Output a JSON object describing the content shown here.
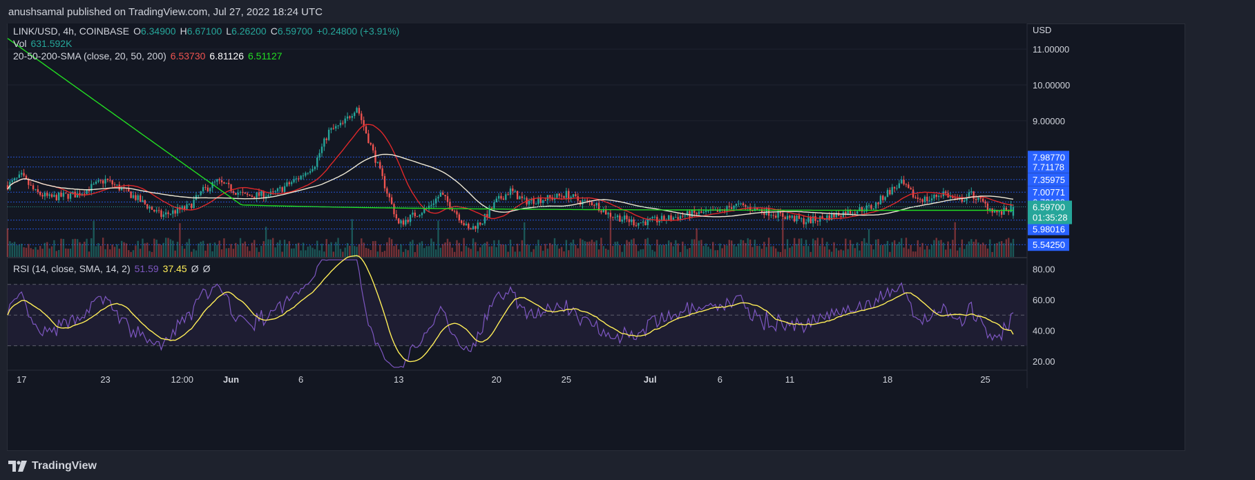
{
  "header": {
    "publisher_line": "anushsamal published on TradingView.com, Jul 27, 2022 18:24 UTC"
  },
  "legend": {
    "symbol": "LINK/USD, 4h, COINBASE",
    "o_label": "O",
    "o_value": "6.34900",
    "h_label": "H",
    "h_value": "6.67100",
    "l_label": "L",
    "l_value": "6.26200",
    "c_label": "C",
    "c_value": "6.59700",
    "change": "+0.24800 (+3.91%)",
    "vol_label": "Vol",
    "vol_value": "631.592K",
    "sma_label": "20-50-200-SMA (close, 20, 50, 200)",
    "sma20_value": "6.53730",
    "sma50_value": "6.81126",
    "sma200_value": "6.51127",
    "rsi_label": "RSI (14, close, SMA, 14, 2)",
    "rsi_value": "51.59",
    "rsi_sma_value": "37.45",
    "rsi_extra1": "Ø",
    "rsi_extra2": "Ø"
  },
  "footer": {
    "brand": "TradingView"
  },
  "icons": {
    "logo": "tradingview-logo-icon"
  },
  "colors": {
    "background": "#131722",
    "up": "#26a69a",
    "down": "#ef5350",
    "sma20": "#e0282a",
    "sma50": "#f0ead6",
    "sma200": "#22dd22",
    "rsi": "#7e57c2",
    "rsi_sma": "#ffee58",
    "price_tag": "#2962ff",
    "current_tag": "#26a69a"
  },
  "chart_data": [
    {
      "type": "candlestick",
      "title": "LINK/USD, 4h, COINBASE",
      "price_axis_label": "USD",
      "y_ticks": [
        "9.00000",
        "10.00000",
        "11.00000"
      ],
      "ylim": [
        5.2,
        11.6
      ],
      "x_ticks": [
        "17",
        "23",
        "12:00",
        "Jun",
        "6",
        "13",
        "20",
        "25",
        "Jul",
        "6",
        "11",
        "18",
        "25"
      ],
      "date_range": [
        "May 16, 2022",
        "Jul 27, 2022"
      ],
      "interval": "4h",
      "horizontal_levels": [
        "7.98770",
        "7.71178",
        "7.35975",
        "7.00771",
        "6.73180",
        "6.22753",
        "5.98016",
        "5.54250"
      ],
      "current_price": {
        "value": "6.59700",
        "countdown": "01:35:28"
      },
      "anchor_closes": [
        [
          "May 16, 2022",
          7.2
        ],
        [
          "May 17, 2022",
          7.45
        ],
        [
          "May 18, 2022",
          7.0
        ],
        [
          "May 19, 2022",
          6.85
        ],
        [
          "May 21, 2022",
          6.95
        ],
        [
          "May 23, 2022",
          7.35
        ],
        [
          "May 25, 2022",
          6.9
        ],
        [
          "May 27, 2022",
          6.35
        ],
        [
          "May 29, 2022",
          6.6
        ],
        [
          "May 30, 2022",
          7.05
        ],
        [
          "May 31, 2022",
          7.3
        ],
        [
          "Jun 02, 2022",
          6.9
        ],
        [
          "Jun 04, 2022",
          6.95
        ],
        [
          "Jun 06, 2022",
          7.45
        ],
        [
          "Jun 07, 2022",
          7.8
        ],
        [
          "Jun 08, 2022",
          8.7
        ],
        [
          "Jun 09, 2022",
          8.9
        ],
        [
          "Jun 10, 2022",
          9.4
        ],
        [
          "Jun 11, 2022",
          8.3
        ],
        [
          "Jun 12, 2022",
          7.2
        ],
        [
          "Jun 13, 2022",
          6.1
        ],
        [
          "Jun 14, 2022",
          6.35
        ],
        [
          "Jun 15, 2022",
          6.55
        ],
        [
          "Jun 16, 2022",
          6.95
        ],
        [
          "Jun 17, 2022",
          6.5
        ],
        [
          "Jun 18, 2022",
          5.95
        ],
        [
          "Jun 19, 2022",
          6.2
        ],
        [
          "Jun 20, 2022",
          6.75
        ],
        [
          "Jun 21, 2022",
          7.05
        ],
        [
          "Jun 22, 2022",
          6.75
        ],
        [
          "Jun 24, 2022",
          6.85
        ],
        [
          "Jun 25, 2022",
          6.95
        ],
        [
          "Jun 26, 2022",
          6.75
        ],
        [
          "Jun 27, 2022",
          6.7
        ],
        [
          "Jun 28, 2022",
          6.4
        ],
        [
          "Jun 30, 2022",
          6.15
        ],
        [
          "Jul 02, 2022",
          6.25
        ],
        [
          "Jul 04, 2022",
          6.4
        ],
        [
          "Jul 06, 2022",
          6.45
        ],
        [
          "Jul 07, 2022",
          6.65
        ],
        [
          "Jul 09, 2022",
          6.5
        ],
        [
          "Jul 11, 2022",
          6.3
        ],
        [
          "Jul 12, 2022",
          6.2
        ],
        [
          "Jul 13, 2022",
          6.25
        ],
        [
          "Jul 15, 2022",
          6.45
        ],
        [
          "Jul 17, 2022",
          6.6
        ],
        [
          "Jul 18, 2022",
          7.0
        ],
        [
          "Jul 19, 2022",
          7.25
        ],
        [
          "Jul 20, 2022",
          6.85
        ],
        [
          "Jul 21, 2022",
          6.8
        ],
        [
          "Jul 22, 2022",
          7.0
        ],
        [
          "Jul 23, 2022",
          6.75
        ],
        [
          "Jul 24, 2022",
          6.95
        ],
        [
          "Jul 25, 2022",
          6.65
        ],
        [
          "Jul 26, 2022",
          6.4
        ],
        [
          "Jul 27, 2022",
          6.597
        ]
      ],
      "series": [
        {
          "name": "SMA 20",
          "last": 6.5373
        },
        {
          "name": "SMA 50",
          "last": 6.81126
        },
        {
          "name": "SMA 200",
          "last": 6.51127
        }
      ],
      "volume_last": "631.592K"
    },
    {
      "type": "line",
      "title": "RSI (14, close, SMA, 14, 2)",
      "ylim": [
        15,
        87
      ],
      "y_ticks": [
        "20.00",
        "40.00",
        "60.00",
        "80.00"
      ],
      "band": [
        30,
        70
      ],
      "midline": 50,
      "series": [
        {
          "name": "RSI",
          "last": 51.59
        },
        {
          "name": "RSI SMA",
          "last": 37.45
        }
      ]
    }
  ]
}
